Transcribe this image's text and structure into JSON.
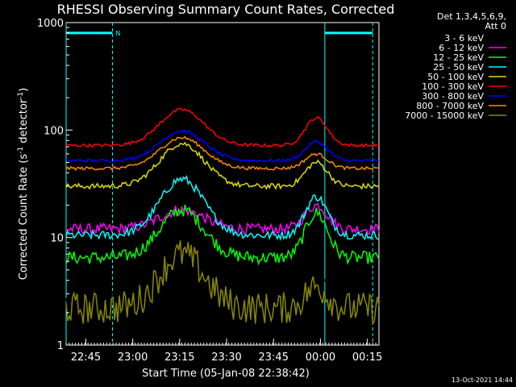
{
  "chart_data": {
    "type": "line",
    "title": "RHESSI Observing Summary Count Rates, Corrected",
    "xlabel": "Start Time (05-Jan-08 22:38:42)",
    "ylabel_parts": [
      "Corrected Count Rate (s",
      "-1",
      " detector",
      "-1",
      ")"
    ],
    "yscale": "log",
    "ylim": [
      1,
      1000
    ],
    "xlim_minutes": [
      0,
      100
    ],
    "x_ticks": [
      {
        "label": "22:45",
        "minute": 6.3
      },
      {
        "label": "23:00",
        "minute": 21.3
      },
      {
        "label": "23:15",
        "minute": 36.3
      },
      {
        "label": "23:30",
        "minute": 51.3
      },
      {
        "label": "23:45",
        "minute": 66.3
      },
      {
        "label": "00:00",
        "minute": 81.3
      },
      {
        "label": "00:15",
        "minute": 96.3
      }
    ],
    "y_ticks": [
      {
        "label": "1",
        "value": 1
      },
      {
        "label": "10",
        "value": 10
      },
      {
        "label": "100",
        "value": 100
      },
      {
        "label": "1000",
        "value": 1000
      }
    ],
    "legend_header": [
      "Det 1,3,4,5,6,9,",
      "Att 0"
    ],
    "series": [
      {
        "name": "3 - 6 keV",
        "color": "#000000",
        "base": 2.5,
        "peak": 8.0,
        "end_rise": 4.0,
        "noise": 0.25
      },
      {
        "name": "6 - 12 keV",
        "color": "#ff00ff",
        "base": 12.0,
        "peak": 18.0,
        "end_rise": 20.0,
        "noise": 0.1
      },
      {
        "name": "12 - 25 keV",
        "color": "#00ff00",
        "base": 6.5,
        "peak": 18.0,
        "end_rise": 17.0,
        "noise": 0.12
      },
      {
        "name": "25 - 50 keV",
        "color": "#00ffff",
        "base": 10.5,
        "peak": 35.0,
        "end_rise": 24.0,
        "noise": 0.08
      },
      {
        "name": "50 - 100 keV",
        "color": "#dddd00",
        "base": 30.0,
        "peak": 75.0,
        "end_rise": 50.0,
        "noise": 0.05
      },
      {
        "name": "100 - 300 keV",
        "color": "#ff0000",
        "base": 72.0,
        "peak": 155.0,
        "end_rise": 130.0,
        "noise": 0.03
      },
      {
        "name": "300 - 800 keV",
        "color": "#0000ff",
        "base": 52.0,
        "peak": 98.0,
        "end_rise": 78.0,
        "noise": 0.03
      },
      {
        "name": "800 - 7000 keV",
        "color": "#ff8800",
        "base": 44.0,
        "peak": 85.0,
        "end_rise": 60.0,
        "noise": 0.03
      },
      {
        "name": "7000 - 15000 keV",
        "color": "#888800",
        "base": 2.2,
        "peak": 7.0,
        "end_rise": 3.5,
        "noise": 0.3
      }
    ],
    "vertical_markers_minutes": [
      0,
      14.8,
      82.7,
      98.0
    ],
    "top_bar_label": "N",
    "top_bar_level": 800
  },
  "footer": {
    "timestamp": "13-Oct-2021 14:44"
  }
}
